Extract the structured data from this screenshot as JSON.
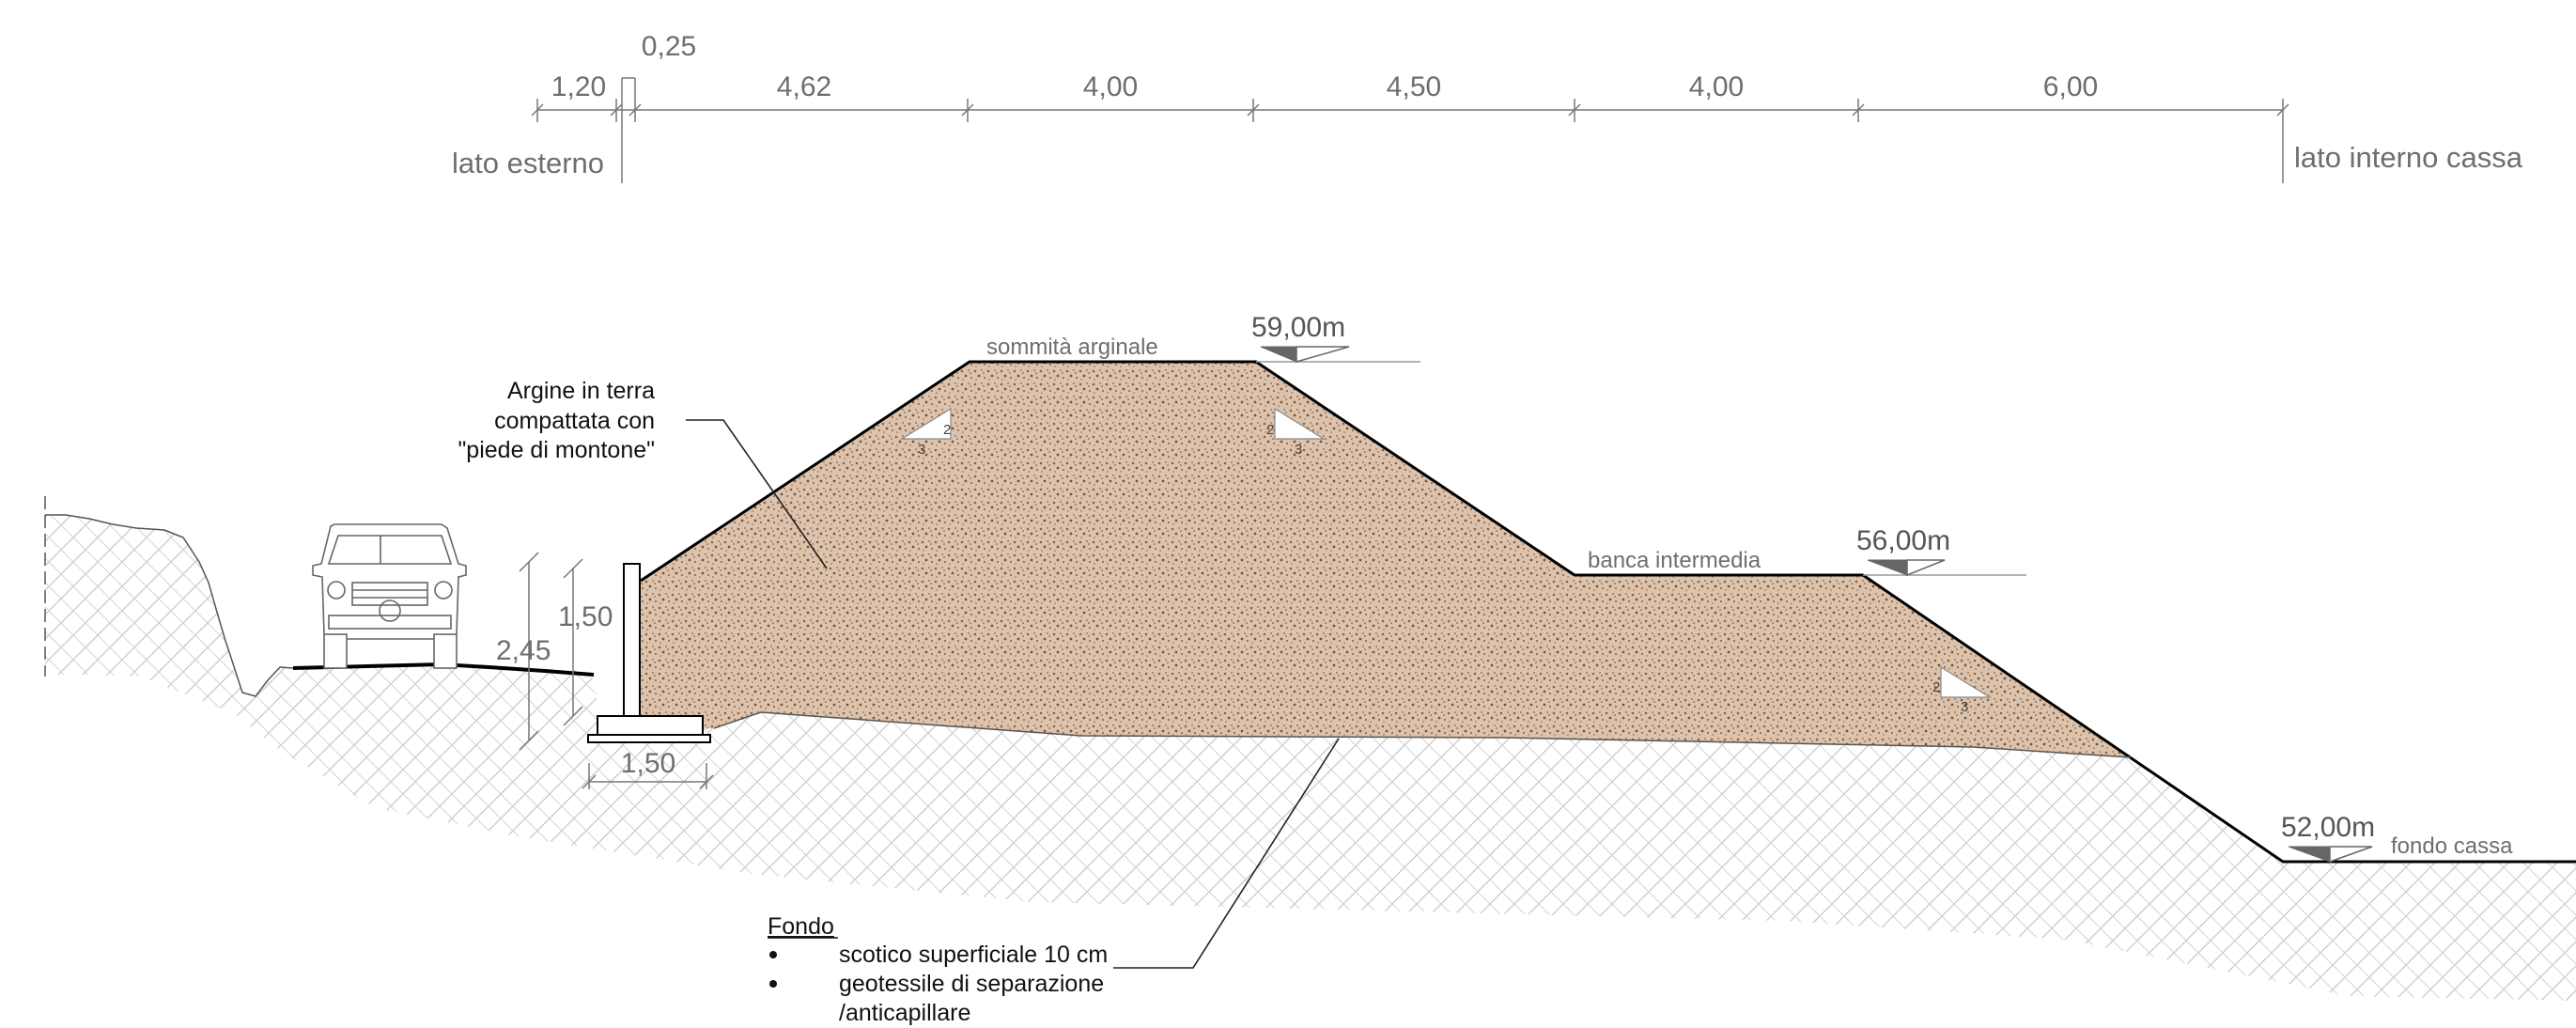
{
  "top_dimensions": {
    "segments": [
      "1,20",
      "0,25",
      "4,62",
      "4,00",
      "4,50",
      "4,00",
      "6,00"
    ],
    "left_label": "lato esterno",
    "right_label": "lato interno cassa"
  },
  "levels": {
    "crest": {
      "label": "sommità arginale",
      "elevation": "59,00m"
    },
    "bench": {
      "label": "banca intermedia",
      "elevation": "56,00m"
    },
    "bottom": {
      "label": "fondo cassa",
      "elevation": "52,00m"
    }
  },
  "wall_dimensions": {
    "total_height": "2,45",
    "wall_height": "1,50",
    "footing_width": "1,50"
  },
  "embankment_note": {
    "line1": "Argine in terra",
    "line2": "compattata con",
    "line3": "\"piede di montone\""
  },
  "foundation_note": {
    "title": "Fondo",
    "bullet1": "scotico superficiale 10 cm",
    "bullet2_line1": "geotessile di separazione",
    "bullet2_line2": "/anticapillare"
  },
  "slopes": [
    {
      "rise": "2",
      "run": "3"
    },
    {
      "rise": "2",
      "run": "3"
    },
    {
      "rise": "2",
      "run": "3"
    }
  ],
  "colors": {
    "embankment_fill": "#d9bea7",
    "embankment_speckle": "#8a5a3c",
    "ground_hatch": "#c4c4c4",
    "dimension_line": "#777777",
    "outline": "#000000"
  }
}
